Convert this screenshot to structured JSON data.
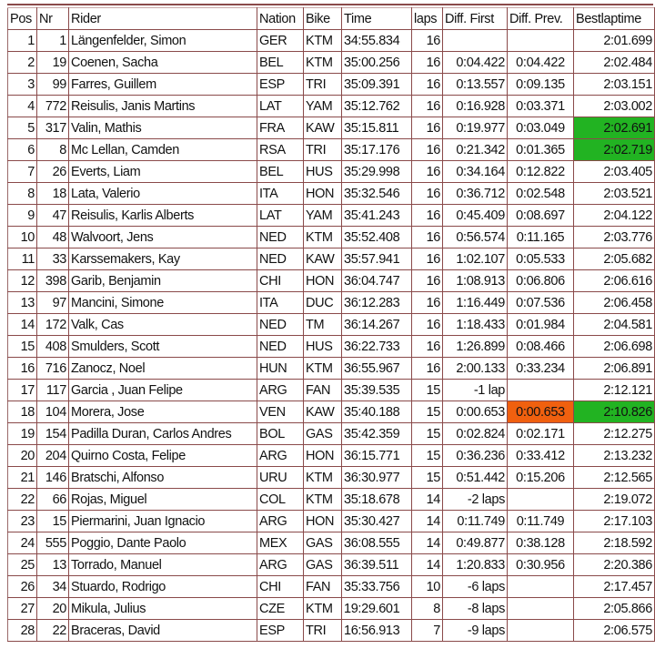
{
  "colors": {
    "best_lap_highlight": "#22b322",
    "diff_prev_highlight": "#f0600f",
    "border": "#8a4a4a"
  },
  "headers": [
    "Pos",
    "Nr",
    "Rider",
    "Nation",
    "Bike",
    "Time",
    "laps",
    "Diff. First",
    "Diff. Prev.",
    "Bestlaptime"
  ],
  "rows": [
    {
      "pos": "1",
      "nr": "1",
      "rider": "Längenfelder, Simon",
      "nation": "GER",
      "bike": "KTM",
      "time": "34:55.834",
      "laps": "16",
      "diff_first": "",
      "diff_prev": "",
      "best": "2:01.699"
    },
    {
      "pos": "2",
      "nr": "19",
      "rider": "Coenen, Sacha",
      "nation": "BEL",
      "bike": "KTM",
      "time": "35:00.256",
      "laps": "16",
      "diff_first": "0:04.422",
      "diff_prev": "0:04.422",
      "best": "2:02.484"
    },
    {
      "pos": "3",
      "nr": "99",
      "rider": "Farres, Guillem",
      "nation": "ESP",
      "bike": "TRI",
      "time": "35:09.391",
      "laps": "16",
      "diff_first": "0:13.557",
      "diff_prev": "0:09.135",
      "best": "2:03.151"
    },
    {
      "pos": "4",
      "nr": "772",
      "rider": "Reisulis, Janis Martins",
      "nation": "LAT",
      "bike": "YAM",
      "time": "35:12.762",
      "laps": "16",
      "diff_first": "0:16.928",
      "diff_prev": "0:03.371",
      "best": "2:03.002"
    },
    {
      "pos": "5",
      "nr": "317",
      "rider": "Valin, Mathis",
      "nation": "FRA",
      "bike": "KAW",
      "time": "35:15.811",
      "laps": "16",
      "diff_first": "0:19.977",
      "diff_prev": "0:03.049",
      "best": "2:02.691",
      "best_highlight": "green"
    },
    {
      "pos": "6",
      "nr": "8",
      "rider": "Mc Lellan, Camden",
      "nation": "RSA",
      "bike": "TRI",
      "time": "35:17.176",
      "laps": "16",
      "diff_first": "0:21.342",
      "diff_prev": "0:01.365",
      "best": "2:02.719",
      "best_highlight": "green"
    },
    {
      "pos": "7",
      "nr": "26",
      "rider": "Everts, Liam",
      "nation": "BEL",
      "bike": "HUS",
      "time": "35:29.998",
      "laps": "16",
      "diff_first": "0:34.164",
      "diff_prev": "0:12.822",
      "best": "2:03.405"
    },
    {
      "pos": "8",
      "nr": "18",
      "rider": "Lata, Valerio",
      "nation": "ITA",
      "bike": "HON",
      "time": "35:32.546",
      "laps": "16",
      "diff_first": "0:36.712",
      "diff_prev": "0:02.548",
      "best": "2:03.521"
    },
    {
      "pos": "9",
      "nr": "47",
      "rider": "Reisulis, Karlis Alberts",
      "nation": "LAT",
      "bike": "YAM",
      "time": "35:41.243",
      "laps": "16",
      "diff_first": "0:45.409",
      "diff_prev": "0:08.697",
      "best": "2:04.122"
    },
    {
      "pos": "10",
      "nr": "48",
      "rider": "Walvoort, Jens",
      "nation": "NED",
      "bike": "KTM",
      "time": "35:52.408",
      "laps": "16",
      "diff_first": "0:56.574",
      "diff_prev": "0:11.165",
      "best": "2:03.776"
    },
    {
      "pos": "11",
      "nr": "33",
      "rider": "Karssemakers, Kay",
      "nation": "NED",
      "bike": "KAW",
      "time": "35:57.941",
      "laps": "16",
      "diff_first": "1:02.107",
      "diff_prev": "0:05.533",
      "best": "2:05.682"
    },
    {
      "pos": "12",
      "nr": "398",
      "rider": "Garib, Benjamin",
      "nation": "CHI",
      "bike": "HON",
      "time": "36:04.747",
      "laps": "16",
      "diff_first": "1:08.913",
      "diff_prev": "0:06.806",
      "best": "2:06.616"
    },
    {
      "pos": "13",
      "nr": "97",
      "rider": "Mancini, Simone",
      "nation": "ITA",
      "bike": "DUC",
      "time": "36:12.283",
      "laps": "16",
      "diff_first": "1:16.449",
      "diff_prev": "0:07.536",
      "best": "2:06.458"
    },
    {
      "pos": "14",
      "nr": "172",
      "rider": "Valk, Cas",
      "nation": "NED",
      "bike": "TM",
      "time": "36:14.267",
      "laps": "16",
      "diff_first": "1:18.433",
      "diff_prev": "0:01.984",
      "best": "2:04.581"
    },
    {
      "pos": "15",
      "nr": "408",
      "rider": "Smulders, Scott",
      "nation": "NED",
      "bike": "HUS",
      "time": "36:22.733",
      "laps": "16",
      "diff_first": "1:26.899",
      "diff_prev": "0:08.466",
      "best": "2:06.698"
    },
    {
      "pos": "16",
      "nr": "716",
      "rider": "Zanocz, Noel",
      "nation": "HUN",
      "bike": "KTM",
      "time": "36:55.967",
      "laps": "16",
      "diff_first": "2:00.133",
      "diff_prev": "0:33.234",
      "best": "2:06.891"
    },
    {
      "pos": "17",
      "nr": "117",
      "rider": "Garcia , Juan Felipe",
      "nation": "ARG",
      "bike": "FAN",
      "time": "35:39.535",
      "laps": "15",
      "diff_first": "-1 lap",
      "diff_prev": "",
      "best": "2:12.121"
    },
    {
      "pos": "18",
      "nr": "104",
      "rider": "Morera, Jose",
      "nation": "VEN",
      "bike": "KAW",
      "time": "35:40.188",
      "laps": "15",
      "diff_first": "0:00.653",
      "diff_prev": "0:00.653",
      "diff_prev_highlight": "orange",
      "best": "2:10.826",
      "best_highlight": "green"
    },
    {
      "pos": "19",
      "nr": "154",
      "rider": "Padilla Duran, Carlos Andres",
      "nation": "BOL",
      "bike": "GAS",
      "time": "35:42.359",
      "laps": "15",
      "diff_first": "0:02.824",
      "diff_prev": "0:02.171",
      "best": "2:12.275"
    },
    {
      "pos": "20",
      "nr": "204",
      "rider": "Quirno Costa, Felipe",
      "nation": "ARG",
      "bike": "HON",
      "time": "36:15.771",
      "laps": "15",
      "diff_first": "0:36.236",
      "diff_prev": "0:33.412",
      "best": "2:13.232"
    },
    {
      "pos": "21",
      "nr": "146",
      "rider": "Bratschi, Alfonso",
      "nation": "URU",
      "bike": "KTM",
      "time": "36:30.977",
      "laps": "15",
      "diff_first": "0:51.442",
      "diff_prev": "0:15.206",
      "best": "2:12.565"
    },
    {
      "pos": "22",
      "nr": "66",
      "rider": "Rojas, Miguel",
      "nation": "COL",
      "bike": "KTM",
      "time": "35:18.678",
      "laps": "14",
      "diff_first": "-2 laps",
      "diff_prev": "",
      "best": "2:19.072"
    },
    {
      "pos": "23",
      "nr": "15",
      "rider": "Piermarini, Juan Ignacio",
      "nation": "ARG",
      "bike": "HON",
      "time": "35:30.427",
      "laps": "14",
      "diff_first": "0:11.749",
      "diff_prev": "0:11.749",
      "best": "2:17.103"
    },
    {
      "pos": "24",
      "nr": "555",
      "rider": "Poggio, Dante Paolo",
      "nation": "MEX",
      "bike": "GAS",
      "time": "36:08.555",
      "laps": "14",
      "diff_first": "0:49.877",
      "diff_prev": "0:38.128",
      "best": "2:18.592"
    },
    {
      "pos": "25",
      "nr": "13",
      "rider": "Torrado, Manuel",
      "nation": "ARG",
      "bike": "GAS",
      "time": "36:39.511",
      "laps": "14",
      "diff_first": "1:20.833",
      "diff_prev": "0:30.956",
      "best": "2:20.386"
    },
    {
      "pos": "26",
      "nr": "34",
      "rider": "Stuardo, Rodrigo",
      "nation": "CHI",
      "bike": "FAN",
      "time": "35:33.756",
      "laps": "10",
      "diff_first": "-6 laps",
      "diff_prev": "",
      "best": "2:17.457"
    },
    {
      "pos": "27",
      "nr": "20",
      "rider": "Mikula, Julius",
      "nation": "CZE",
      "bike": "KTM",
      "time": "19:29.601",
      "laps": "8",
      "diff_first": "-8 laps",
      "diff_prev": "",
      "best": "2:05.866"
    },
    {
      "pos": "28",
      "nr": "22",
      "rider": "Braceras, David",
      "nation": "ESP",
      "bike": "TRI",
      "time": "16:56.913",
      "laps": "7",
      "diff_first": "-9 laps",
      "diff_prev": "",
      "best": "2:06.575"
    }
  ]
}
